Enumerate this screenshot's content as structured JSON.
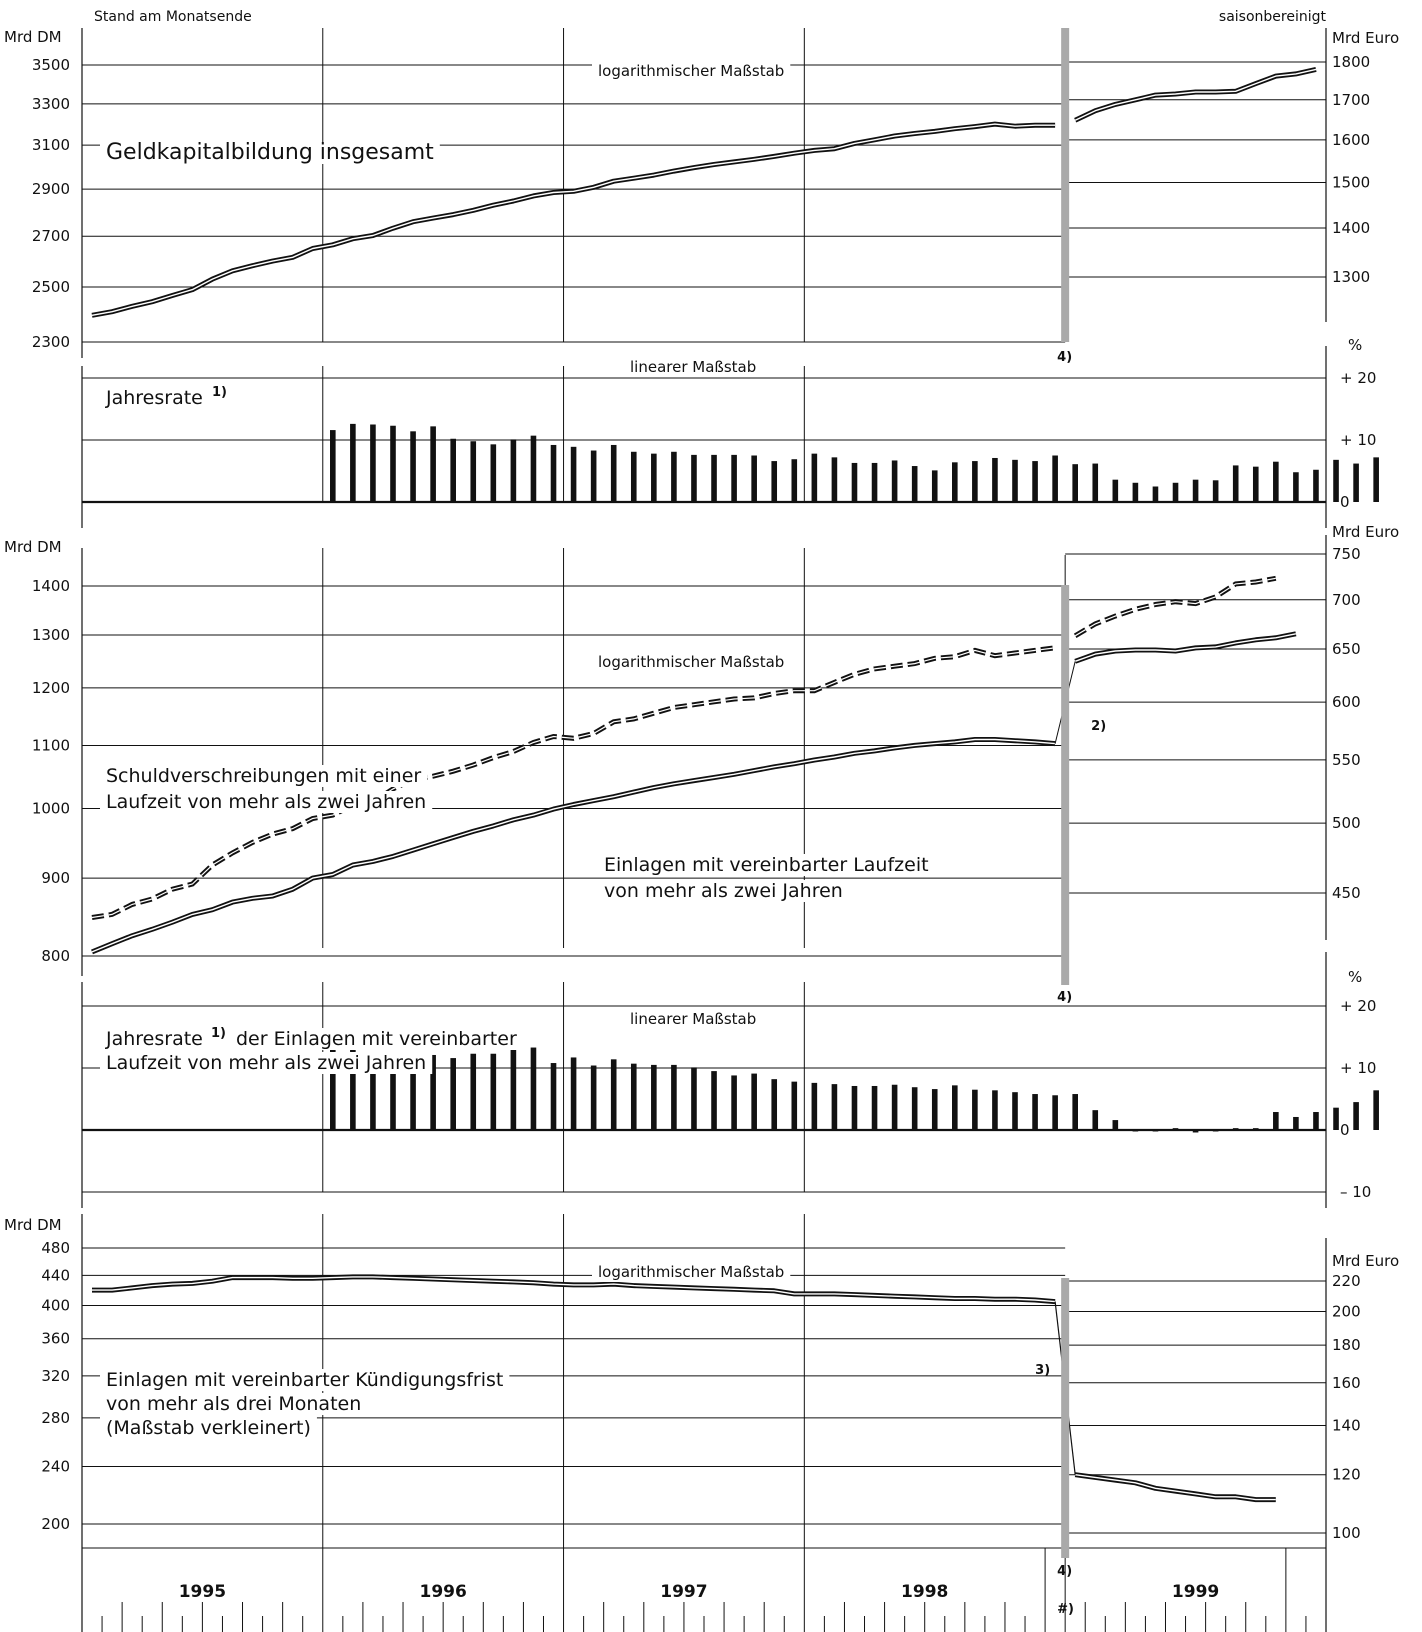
{
  "header": {
    "left": "Stand am Monatsende",
    "right": "saisonbereinigt"
  },
  "units": {
    "dm": "Mrd DM",
    "euro": "Mrd Euro",
    "pct": "%"
  },
  "scale_labels": {
    "log": "logarithmischer Maßstab",
    "lin": "linearer Maßstab"
  },
  "footnote_labels": {
    "fn4": "4)",
    "fn2": "2)",
    "fn3": "3)",
    "fnx": "#)",
    "sup1": "1)"
  },
  "years": [
    "1995",
    "1996",
    "1997",
    "1998",
    "1999"
  ],
  "panel_labels": {
    "total": "Geldkapitalbildung insgesamt",
    "rate1": "Jahresrate",
    "bonds_1": "Schuldverschreibungen mit einer",
    "bonds_2": "Laufzeit von mehr als zwei Jahren",
    "term_1": "Einlagen mit vereinbarter Laufzeit",
    "term_2": "von mehr als zwei Jahren",
    "rate2_1": "Jahresrate",
    "rate2_1b": "der Einlagen mit vereinbarter",
    "rate2_2": "Laufzeit von mehr als zwei Jahren",
    "notice_1": "Einlagen mit vereinbarter Kündigungsfrist",
    "notice_2": "von mehr als drei Monaten",
    "notice_3": "(Maßstab verkleinert)"
  },
  "chart_data": [
    {
      "type": "line",
      "title": "Geldkapitalbildung insgesamt",
      "scale": "log",
      "y_left": {
        "unit": "Mrd DM",
        "ticks": [
          2300,
          2500,
          2700,
          2900,
          3100,
          3300,
          3500
        ]
      },
      "y_right": {
        "unit": "Mrd Euro",
        "ticks": [
          1300,
          1400,
          1500,
          1600,
          1700,
          1800
        ]
      },
      "x_start": "1995-01",
      "series": [
        {
          "style": "double",
          "dm_values": [
            2395,
            2408,
            2428,
            2445,
            2468,
            2490,
            2530,
            2562,
            2582,
            2600,
            2615,
            2650,
            2665,
            2690,
            2703,
            2733,
            2760,
            2775,
            2790,
            2808,
            2830,
            2848,
            2870,
            2885,
            2890,
            2908,
            2935,
            2948,
            2962,
            2980,
            2996,
            3010,
            3022,
            3034,
            3047,
            3062,
            3075,
            3083,
            3108,
            3125,
            3143,
            3155,
            3165,
            3178,
            3188,
            3200,
            3190,
            3195,
            3195
          ],
          "euro_values": [
            1648,
            1672,
            1688,
            1700,
            1712,
            1715,
            1720,
            1720,
            1722,
            1742,
            1762,
            1768,
            1780
          ]
        }
      ]
    },
    {
      "type": "bar",
      "title": "Jahresrate 1)",
      "scale": "linear",
      "y_right": {
        "unit": "%",
        "ticks": [
          0,
          10,
          20
        ]
      },
      "x_start": "1996-01",
      "values": [
        11.6,
        12.6,
        12.5,
        12.3,
        11.4,
        12.2,
        10.2,
        9.8,
        9.3,
        10.1,
        10.7,
        9.2,
        8.9,
        8.3,
        9.2,
        8.1,
        7.8,
        8.1,
        7.6,
        7.6,
        7.6,
        7.5,
        6.6,
        6.9,
        7.8,
        7.2,
        6.3,
        6.3,
        6.7,
        5.8,
        5.1,
        6.4,
        6.6,
        7.1,
        6.8,
        6.6,
        7.5,
        6.1,
        6.2,
        3.6,
        3.1,
        2.5,
        3.1,
        3.6,
        3.5,
        5.9,
        5.7,
        6.5,
        4.8,
        5.2,
        6.8,
        6.2,
        7.2
      ]
    },
    {
      "type": "line",
      "scale": "log",
      "y_left": {
        "unit": "Mrd DM",
        "ticks": [
          800,
          900,
          1000,
          1100,
          1200,
          1300,
          1400
        ]
      },
      "y_right": {
        "unit": "Mrd Euro",
        "ticks": [
          450,
          500,
          550,
          600,
          650,
          700,
          750
        ]
      },
      "x_start": "1995-01",
      "series": [
        {
          "name": "Schuldverschreibungen mit einer Laufzeit von mehr als zwei Jahren",
          "style": "dashed",
          "dm_values": [
            848,
            852,
            865,
            872,
            885,
            892,
            918,
            935,
            950,
            962,
            970,
            985,
            990,
            1005,
            1010,
            1030,
            1045,
            1050,
            1058,
            1068,
            1080,
            1090,
            1105,
            1115,
            1112,
            1120,
            1140,
            1145,
            1155,
            1165,
            1170,
            1175,
            1180,
            1182,
            1190,
            1195,
            1195,
            1210,
            1225,
            1235,
            1240,
            1245,
            1255,
            1258,
            1270,
            1260,
            1265,
            1270,
            1275
          ],
          "euro_values": [
            663,
            675,
            683,
            690,
            695,
            698,
            696,
            703,
            717,
            719,
            723
          ]
        },
        {
          "name": "Einlagen mit vereinbarter Laufzeit von mehr als zwei Jahren",
          "style": "double",
          "dm_values": [
            805,
            815,
            825,
            833,
            842,
            852,
            858,
            868,
            873,
            876,
            885,
            900,
            905,
            918,
            923,
            930,
            939,
            948,
            957,
            966,
            974,
            983,
            990,
            999,
            1006,
            1012,
            1018,
            1025,
            1032,
            1038,
            1043,
            1048,
            1053,
            1059,
            1065,
            1070,
            1076,
            1081,
            1087,
            1091,
            1096,
            1100,
            1103,
            1106,
            1110,
            1110,
            1108,
            1106,
            1103
          ],
          "euro_values": [
            638,
            645,
            648,
            649,
            649,
            648,
            651,
            652,
            656,
            659,
            661,
            665
          ]
        }
      ]
    },
    {
      "type": "bar",
      "title": "Jahresrate 1) der Einlagen mit vereinbarter Laufzeit von mehr als zwei Jahren",
      "scale": "linear",
      "y_right": {
        "unit": "%",
        "ticks": [
          -10,
          0,
          10,
          20
        ]
      },
      "x_start": "1996-01",
      "values": [
        14.0,
        13.5,
        12.0,
        10.5,
        10.5,
        12.1,
        11.6,
        12.3,
        12.3,
        13.4,
        13.3,
        10.8,
        11.7,
        10.4,
        11.4,
        10.7,
        10.5,
        10.5,
        10.1,
        9.5,
        8.8,
        9.1,
        8.2,
        7.8,
        7.6,
        7.4,
        7.1,
        7.1,
        7.3,
        6.9,
        6.6,
        7.2,
        6.5,
        6.4,
        6.1,
        5.8,
        5.6,
        5.8,
        3.2,
        1.6,
        0.0,
        0.0,
        0.3,
        -0.4,
        0.0,
        0.3,
        0.3,
        2.9,
        2.1,
        2.9,
        3.6,
        4.5,
        6.4
      ]
    },
    {
      "type": "line",
      "title": "Einlagen mit vereinbarter Kündigungsfrist von mehr als drei Monaten (Maßstab verkleinert)",
      "scale": "log",
      "y_left": {
        "unit": "Mrd DM",
        "ticks": [
          200,
          240,
          280,
          320,
          360,
          400,
          440,
          480
        ]
      },
      "y_right": {
        "unit": "Mrd Euro",
        "ticks": [
          100,
          120,
          140,
          160,
          180,
          200,
          220
        ]
      },
      "x_start": "1995-01",
      "series": [
        {
          "style": "double",
          "dm_values": [
            420,
            420,
            423,
            426,
            428,
            429,
            432,
            437,
            437,
            437,
            436,
            436,
            437,
            438,
            438,
            437,
            436,
            435,
            434,
            433,
            432,
            431,
            430,
            428,
            427,
            427,
            428,
            426,
            425,
            424,
            423,
            422,
            421,
            420,
            419,
            415,
            415,
            415,
            414,
            413,
            412,
            411,
            410,
            409,
            409,
            408,
            408,
            407,
            405
          ],
          "euro_values": [
            120,
            119,
            118,
            117,
            115,
            114,
            113,
            112,
            112,
            111,
            111
          ]
        }
      ]
    }
  ]
}
